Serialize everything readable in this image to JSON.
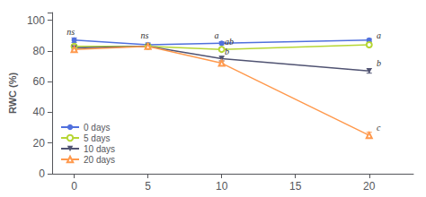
{
  "chart_data": {
    "type": "line",
    "ylabel": "RWC (%)",
    "x": [
      0,
      5,
      10,
      20
    ],
    "series": [
      {
        "name": "0 days",
        "values": [
          87,
          84,
          85,
          87
        ],
        "yerr": [
          1.5,
          1.2,
          1.0,
          1.0
        ],
        "marker": "circle",
        "line_style": "solid"
      },
      {
        "name": "5 days",
        "values": [
          83,
          83,
          81,
          84
        ],
        "yerr": [
          1.2,
          1.0,
          1.2,
          1.5
        ],
        "marker": "open-circle",
        "line_style": "solid"
      },
      {
        "name": "10 days",
        "values": [
          82,
          83,
          75,
          67
        ],
        "yerr": [
          1.0,
          1.0,
          1.5,
          1.5
        ],
        "marker": "triangle-down",
        "line_style": "solid"
      },
      {
        "name": "20 days",
        "values": [
          81,
          83,
          72,
          25
        ],
        "yerr": [
          1.0,
          1.0,
          1.5,
          2.0
        ],
        "marker": "open-triangle-up",
        "line_style": "solid"
      }
    ],
    "annotations": [
      {
        "text": "ns",
        "x": -0.5,
        "y": 89.5
      },
      {
        "text": "ns",
        "x": 4.5,
        "y": 87.0
      },
      {
        "text": "a",
        "x": 9.5,
        "y": 87.0
      },
      {
        "text": "ab",
        "x": 10.2,
        "y": 83.0
      },
      {
        "text": "b",
        "x": 10.2,
        "y": 77.0
      },
      {
        "text": "a",
        "x": 20.5,
        "y": 87.5
      },
      {
        "text": "b",
        "x": 20.5,
        "y": 69.0
      },
      {
        "text": "c",
        "x": 20.5,
        "y": 27.0
      }
    ],
    "xlim": [
      -1.5,
      23
    ],
    "ylim": [
      0,
      105
    ],
    "xticks": [
      0,
      5,
      10,
      15,
      20
    ],
    "yticks": [
      0,
      20,
      40,
      60,
      80,
      100
    ],
    "grid": false,
    "legend": "lower left"
  }
}
